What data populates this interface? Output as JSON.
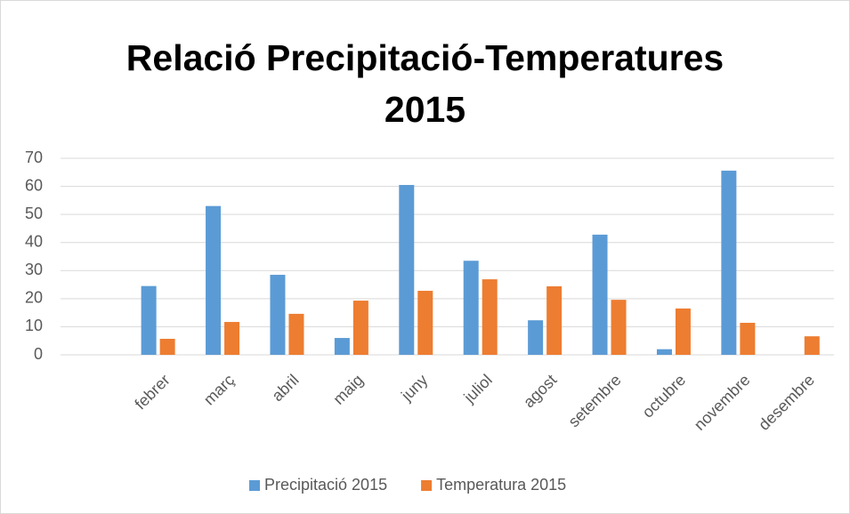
{
  "chart_data": {
    "type": "bar",
    "title": "Relació Precipitació-Temperatures 2015",
    "categories": [
      null,
      "febrer",
      "març",
      "abril",
      "maig",
      "juny",
      "juliol",
      "agost",
      "setembre",
      "octubre",
      "novembre",
      "desembre"
    ],
    "series": [
      {
        "name": "Precipitació 2015",
        "color": "#5b9bd5",
        "values": [
          null,
          24.5,
          53,
          28.5,
          6,
          60.5,
          33.5,
          12.3,
          42.8,
          2,
          65.6,
          null
        ]
      },
      {
        "name": "Temperatura 2015",
        "color": "#ed7d31",
        "values": [
          null,
          5.7,
          11.7,
          14.6,
          19.3,
          22.8,
          26.9,
          24.4,
          19.6,
          16.5,
          11.4,
          6.6
        ]
      }
    ],
    "ylim": [
      0,
      70
    ],
    "yticks": [
      0,
      10,
      20,
      30,
      40,
      50,
      60,
      70
    ],
    "grid": true,
    "legend": "bottom"
  }
}
